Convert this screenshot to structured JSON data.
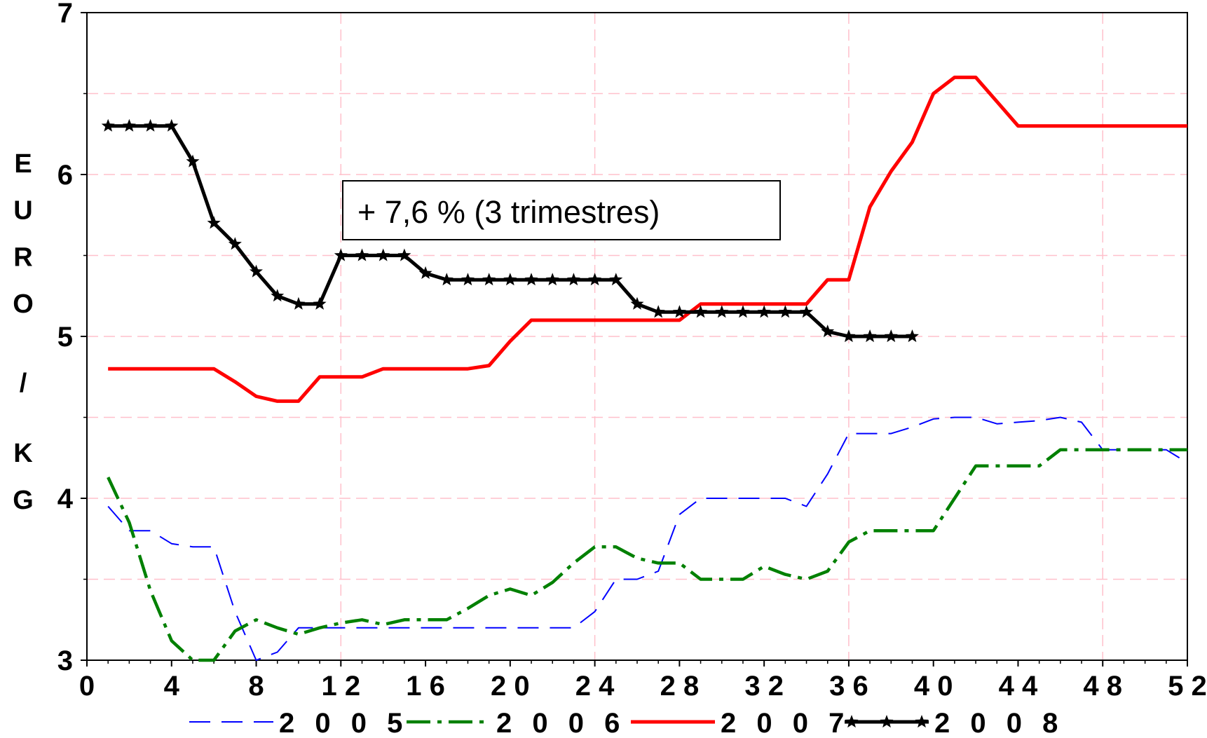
{
  "chart_data": {
    "type": "line",
    "title": "",
    "xlabel": "",
    "ylabel": "EURO/KG",
    "ylabel_letters": [
      "E",
      "U",
      "R",
      "O",
      "/",
      "K",
      "G"
    ],
    "xlim": [
      0,
      52
    ],
    "ylim": [
      3,
      7
    ],
    "x_ticks": [
      0,
      4,
      8,
      12,
      16,
      20,
      24,
      28,
      32,
      36,
      40,
      44,
      48,
      52
    ],
    "x_tick_labels": [
      "0",
      "4",
      "8",
      "1 2",
      "1 6",
      "2 0",
      "2 4",
      "2 8",
      "3 2",
      "3 6",
      "4 0",
      "4 4",
      "4 8",
      "5 2"
    ],
    "y_ticks": [
      3,
      4,
      5,
      6,
      7
    ],
    "y_tick_labels": [
      "3",
      "4",
      "5",
      "6",
      "7"
    ],
    "grid": true,
    "legend_position": "bottom",
    "annotation": "+ 7,6 % (3 trimestres)",
    "series": [
      {
        "name": "2 0 0 5",
        "color": "#0000ff",
        "style": "long-dash",
        "x": [
          1,
          2,
          3,
          4,
          5,
          6,
          7,
          8,
          9,
          10,
          11,
          12,
          13,
          14,
          15,
          16,
          17,
          18,
          19,
          20,
          21,
          22,
          23,
          24,
          25,
          26,
          27,
          28,
          29,
          30,
          31,
          32,
          33,
          34,
          35,
          36,
          37,
          38,
          39,
          40,
          41,
          42,
          43,
          44,
          45,
          46,
          47,
          48,
          49,
          50,
          51,
          52
        ],
        "y": [
          3.95,
          3.8,
          3.8,
          3.72,
          3.7,
          3.7,
          3.3,
          3.0,
          3.05,
          3.2,
          3.2,
          3.2,
          3.2,
          3.2,
          3.2,
          3.2,
          3.2,
          3.2,
          3.2,
          3.2,
          3.2,
          3.2,
          3.2,
          3.3,
          3.5,
          3.5,
          3.55,
          3.9,
          4.0,
          4.0,
          4.0,
          4.0,
          4.0,
          3.95,
          4.15,
          4.4,
          4.4,
          4.4,
          4.44,
          4.49,
          4.5,
          4.5,
          4.46,
          4.47,
          4.48,
          4.5,
          4.47,
          4.3,
          4.3,
          4.3,
          4.3,
          4.22
        ]
      },
      {
        "name": "2 0 0 6",
        "color": "#008000",
        "style": "dash-dot",
        "x": [
          1,
          2,
          3,
          4,
          5,
          6,
          7,
          8,
          9,
          10,
          11,
          12,
          13,
          14,
          15,
          16,
          17,
          18,
          19,
          20,
          21,
          22,
          23,
          24,
          25,
          26,
          27,
          28,
          29,
          30,
          31,
          32,
          33,
          34,
          35,
          36,
          37,
          38,
          39,
          40,
          41,
          42,
          43,
          44,
          45,
          46,
          47,
          48,
          49,
          50,
          51,
          52
        ],
        "y": [
          4.13,
          3.85,
          3.43,
          3.12,
          3.0,
          3.0,
          3.18,
          3.25,
          3.2,
          3.16,
          3.2,
          3.23,
          3.25,
          3.22,
          3.25,
          3.25,
          3.25,
          3.32,
          3.4,
          3.44,
          3.4,
          3.48,
          3.6,
          3.7,
          3.7,
          3.63,
          3.6,
          3.6,
          3.5,
          3.5,
          3.5,
          3.58,
          3.53,
          3.5,
          3.55,
          3.73,
          3.8,
          3.8,
          3.8,
          3.8,
          4.0,
          4.2,
          4.2,
          4.2,
          4.2,
          4.3,
          4.3,
          4.3,
          4.3,
          4.3,
          4.3,
          4.3
        ]
      },
      {
        "name": "2 0 0 7",
        "color": "#ff0000",
        "style": "solid",
        "x": [
          1,
          2,
          3,
          4,
          5,
          6,
          7,
          8,
          9,
          10,
          11,
          12,
          13,
          14,
          15,
          16,
          17,
          18,
          19,
          20,
          21,
          22,
          23,
          24,
          25,
          26,
          27,
          28,
          29,
          30,
          31,
          32,
          33,
          34,
          35,
          36,
          37,
          38,
          39,
          40,
          41,
          42,
          43,
          44,
          45,
          46,
          47,
          48,
          49,
          50,
          51,
          52
        ],
        "y": [
          4.8,
          4.8,
          4.8,
          4.8,
          4.8,
          4.8,
          4.72,
          4.63,
          4.6,
          4.6,
          4.75,
          4.75,
          4.75,
          4.8,
          4.8,
          4.8,
          4.8,
          4.8,
          4.82,
          4.97,
          5.1,
          5.1,
          5.1,
          5.1,
          5.1,
          5.1,
          5.1,
          5.1,
          5.2,
          5.2,
          5.2,
          5.2,
          5.2,
          5.2,
          5.35,
          5.35,
          5.8,
          6.02,
          6.2,
          6.5,
          6.6,
          6.6,
          6.45,
          6.3,
          6.3,
          6.3,
          6.3,
          6.3,
          6.3,
          6.3,
          6.3,
          6.3
        ]
      },
      {
        "name": "2 0 0 8",
        "color": "#000000",
        "style": "star",
        "x": [
          1,
          2,
          3,
          4,
          5,
          6,
          7,
          8,
          9,
          10,
          11,
          12,
          13,
          14,
          15,
          16,
          17,
          18,
          19,
          20,
          21,
          22,
          23,
          24,
          25,
          26,
          27,
          28,
          29,
          30,
          31,
          32,
          33,
          34,
          35,
          36,
          37,
          38,
          39
        ],
        "y": [
          6.3,
          6.3,
          6.3,
          6.3,
          6.08,
          5.7,
          5.57,
          5.4,
          5.25,
          5.2,
          5.2,
          5.5,
          5.5,
          5.5,
          5.5,
          5.39,
          5.35,
          5.35,
          5.35,
          5.35,
          5.35,
          5.35,
          5.35,
          5.35,
          5.35,
          5.2,
          5.15,
          5.15,
          5.15,
          5.15,
          5.15,
          5.15,
          5.15,
          5.15,
          5.03,
          5.0,
          5.0,
          5.0,
          5.0
        ]
      }
    ]
  }
}
